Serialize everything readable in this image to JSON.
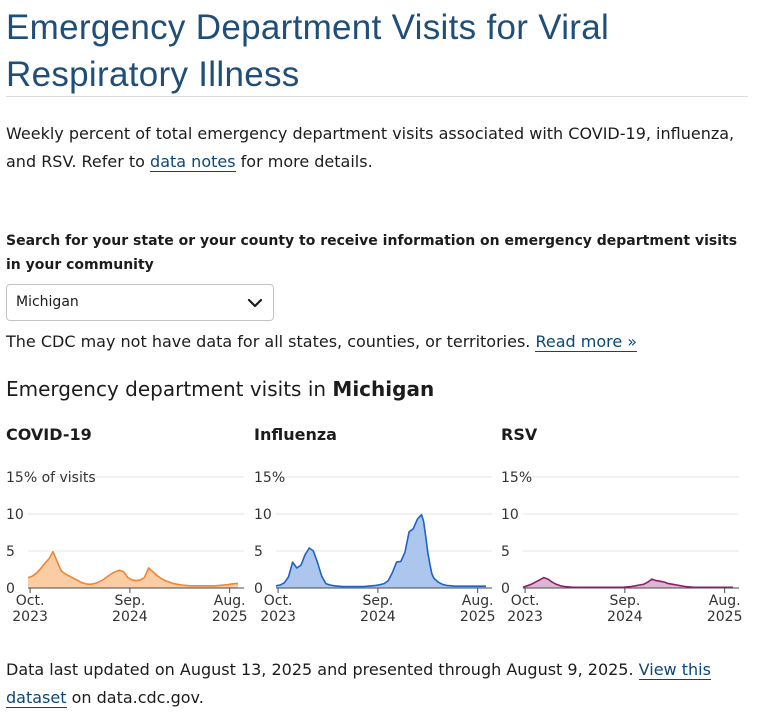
{
  "page": {
    "title": "Emergency Department Visits for Viral Respiratory Illness",
    "intro_before": "Weekly percent of total emergency department visits associated with COVID-19, influenza, and RSV. Refer to ",
    "intro_link": "data notes",
    "intro_after": " for more details."
  },
  "search": {
    "label": "Search for your state or your county to receive information on emergency department visits in your community",
    "selected": "Michigan",
    "icon": "chevron-down-icon"
  },
  "disclaimer": {
    "text": "The CDC may not have data for all states, counties, or territories. ",
    "link": "Read more »"
  },
  "section": {
    "title_prefix": "Emergency department visits in ",
    "location": "Michigan"
  },
  "footer": {
    "before": "Data last updated on August 13, 2025 and presented through August 9, 2025. ",
    "link": "View this dataset",
    "after": " on data.cdc.gov."
  },
  "chart_data": [
    {
      "type": "area",
      "title": "COVID-19",
      "color": "#f08535",
      "fill": "#fbcda5",
      "ylim": [
        0,
        15
      ],
      "yticks": [
        "0",
        "5",
        "10",
        "15% of visits"
      ],
      "xticks": [
        {
          "line1": "Oct.",
          "line2": "2023",
          "week": 1
        },
        {
          "line1": "Sep.",
          "line2": "2024",
          "week": 49
        },
        {
          "line1": "Aug.",
          "line2": "2025",
          "week": 97
        }
      ],
      "x_weeks": [
        0,
        2,
        4,
        6,
        8,
        10,
        12,
        14,
        16,
        18,
        20,
        22,
        24,
        26,
        28,
        30,
        32,
        34,
        36,
        38,
        40,
        42,
        44,
        46,
        48,
        50,
        52,
        54,
        56,
        58,
        60,
        62,
        64,
        66,
        68,
        70,
        72,
        74,
        76,
        78,
        80,
        82,
        84,
        86,
        88,
        90,
        92,
        94,
        96,
        98,
        100,
        101
      ],
      "values": [
        1.4,
        1.6,
        2.0,
        2.6,
        3.3,
        3.9,
        4.9,
        3.6,
        2.3,
        1.9,
        1.6,
        1.3,
        1.0,
        0.7,
        0.55,
        0.5,
        0.6,
        0.8,
        1.1,
        1.5,
        1.9,
        2.2,
        2.4,
        2.2,
        1.4,
        1.1,
        1.0,
        1.1,
        1.4,
        2.7,
        2.2,
        1.7,
        1.3,
        1.0,
        0.8,
        0.6,
        0.5,
        0.4,
        0.35,
        0.3,
        0.3,
        0.3,
        0.3,
        0.3,
        0.3,
        0.3,
        0.35,
        0.4,
        0.45,
        0.55,
        0.6,
        0.6
      ]
    },
    {
      "type": "area",
      "title": "Influenza",
      "color": "#1f63c6",
      "fill": "#adc6ee",
      "ylim": [
        0,
        15
      ],
      "yticks": [
        "0",
        "5",
        "10",
        "15%"
      ],
      "xticks": [
        {
          "line1": "Oct.",
          "line2": "2023",
          "week": 1
        },
        {
          "line1": "Sep.",
          "line2": "2024",
          "week": 49
        },
        {
          "line1": "Aug.",
          "line2": "2025",
          "week": 97
        }
      ],
      "x_weeks": [
        0,
        2,
        4,
        6,
        8,
        10,
        12,
        14,
        16,
        18,
        20,
        22,
        24,
        26,
        28,
        30,
        32,
        34,
        36,
        38,
        40,
        42,
        44,
        46,
        48,
        50,
        52,
        54,
        56,
        58,
        60,
        62,
        64,
        66,
        68,
        70,
        71,
        72,
        73,
        74,
        75,
        76,
        78,
        80,
        82,
        84,
        86,
        88,
        90,
        92,
        94,
        96,
        98,
        101
      ],
      "values": [
        0.3,
        0.4,
        0.7,
        1.5,
        3.5,
        2.7,
        3.1,
        4.5,
        5.4,
        5.0,
        3.4,
        1.6,
        0.6,
        0.4,
        0.3,
        0.25,
        0.2,
        0.2,
        0.2,
        0.2,
        0.2,
        0.2,
        0.25,
        0.3,
        0.35,
        0.45,
        0.6,
        1.0,
        2.1,
        3.5,
        3.6,
        4.8,
        7.6,
        8.0,
        9.3,
        9.9,
        9.0,
        7.0,
        4.8,
        3.2,
        1.9,
        1.3,
        0.8,
        0.5,
        0.35,
        0.3,
        0.25,
        0.25,
        0.25,
        0.25,
        0.25,
        0.25,
        0.25,
        0.25
      ]
    },
    {
      "type": "area",
      "title": "RSV",
      "color": "#8d1d6f",
      "fill": "#dbb7d2",
      "ylim": [
        0,
        15
      ],
      "yticks": [
        "0",
        "5",
        "10",
        "15%"
      ],
      "xticks": [
        {
          "line1": "Oct.",
          "line2": "2023",
          "week": 1
        },
        {
          "line1": "Sep.",
          "line2": "2024",
          "week": 49
        },
        {
          "line1": "Aug.",
          "line2": "2025",
          "week": 97
        }
      ],
      "x_weeks": [
        0,
        2,
        4,
        6,
        8,
        10,
        12,
        14,
        16,
        18,
        20,
        22,
        24,
        26,
        28,
        30,
        32,
        34,
        36,
        38,
        40,
        42,
        44,
        46,
        48,
        50,
        52,
        54,
        56,
        58,
        60,
        62,
        64,
        66,
        68,
        70,
        72,
        74,
        76,
        78,
        80,
        82,
        84,
        86,
        88,
        90,
        92,
        94,
        96,
        98,
        101
      ],
      "values": [
        0.1,
        0.3,
        0.5,
        0.8,
        1.1,
        1.4,
        1.2,
        0.8,
        0.5,
        0.3,
        0.2,
        0.15,
        0.1,
        0.1,
        0.1,
        0.1,
        0.1,
        0.1,
        0.1,
        0.1,
        0.1,
        0.1,
        0.1,
        0.1,
        0.1,
        0.15,
        0.2,
        0.3,
        0.4,
        0.5,
        0.8,
        1.2,
        1.0,
        0.9,
        0.8,
        0.6,
        0.5,
        0.4,
        0.3,
        0.2,
        0.15,
        0.1,
        0.1,
        0.1,
        0.1,
        0.1,
        0.1,
        0.1,
        0.1,
        0.1,
        0.1
      ]
    }
  ]
}
